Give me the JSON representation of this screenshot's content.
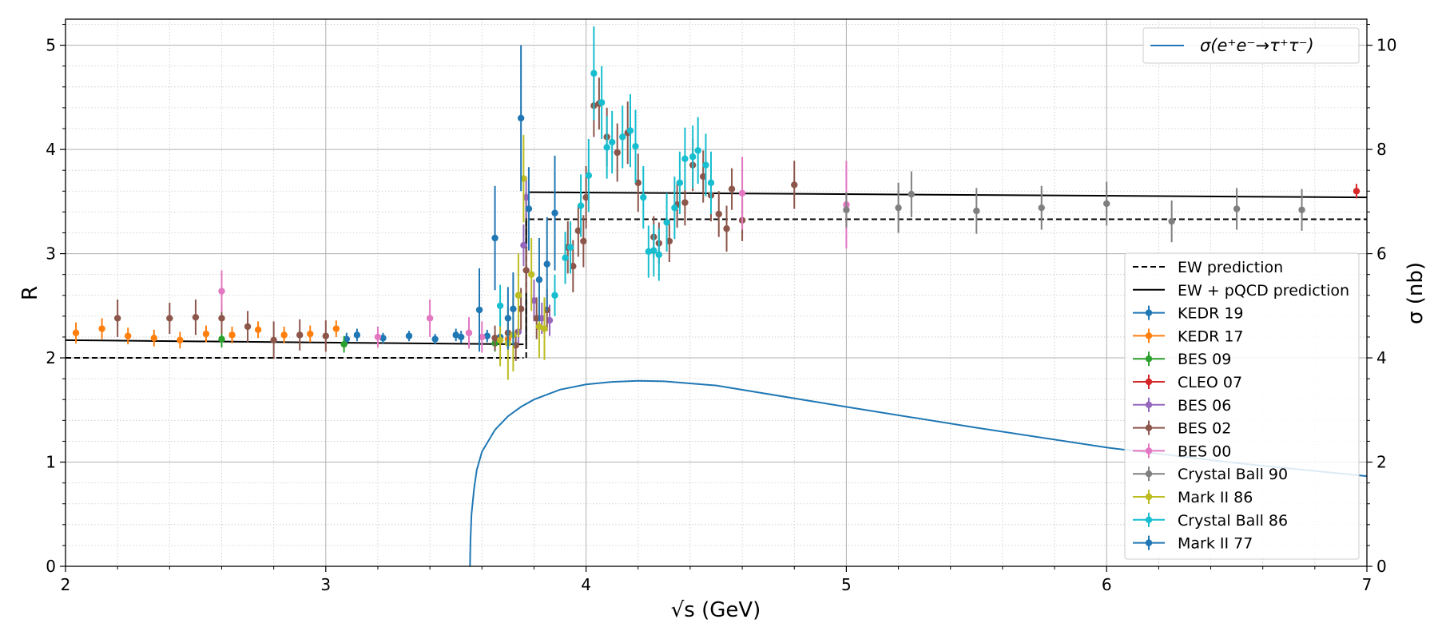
{
  "chart_data": {
    "type": "scatter",
    "title": "",
    "xlabel": "√s (GeV)",
    "ylabel": "R",
    "y2label": "σ (nb)",
    "xlim": [
      2,
      7
    ],
    "ylim": [
      0,
      5.25
    ],
    "y2lim": [
      0,
      10.5
    ],
    "x_ticks": [
      "2",
      "3",
      "4",
      "5",
      "6",
      "7"
    ],
    "y_ticks": [
      "0",
      "1",
      "2",
      "3",
      "4",
      "5"
    ],
    "y2_ticks": [
      "0",
      "2",
      "4",
      "6",
      "8",
      "10"
    ],
    "grid": true,
    "minor_grid": true,
    "legend_top": {
      "placement": "top-right",
      "label": "σ(e⁺e⁻→τ⁺τ⁻)"
    },
    "legend_main": {
      "placement": "right",
      "entries": [
        {
          "label": "EW prediction",
          "style": "dashed"
        },
        {
          "label": "EW + pQCD prediction",
          "style": "solid"
        }
      ]
    },
    "lines": [
      {
        "name": "EW prediction",
        "color": "#000000",
        "style": "dashed",
        "segments": [
          [
            [
              2.0,
              2.0
            ],
            [
              3.76,
              2.0
            ]
          ],
          [
            [
              3.78,
              3.33
            ],
            [
              7.0,
              3.33
            ]
          ]
        ],
        "vertical": [
          3.77,
          2.0,
          3.33
        ]
      },
      {
        "name": "EW + pQCD prediction",
        "color": "#000000",
        "style": "solid",
        "segments": [
          [
            [
              2.0,
              2.17
            ],
            [
              3.76,
              2.13
            ]
          ],
          [
            [
              3.78,
              3.59
            ],
            [
              7.0,
              3.54
            ]
          ]
        ],
        "vertical": [
          3.77,
          2.13,
          3.59
        ]
      },
      {
        "name": "σ(e⁺e⁻→τ⁺τ⁻)",
        "color": "#1f77b4",
        "style": "solid",
        "axis": "y2",
        "points": [
          [
            3.554,
            0.0
          ],
          [
            3.556,
            0.5
          ],
          [
            3.56,
            1.0
          ],
          [
            3.57,
            1.5
          ],
          [
            3.58,
            1.85
          ],
          [
            3.6,
            2.2
          ],
          [
            3.65,
            2.62
          ],
          [
            3.7,
            2.88
          ],
          [
            3.75,
            3.06
          ],
          [
            3.8,
            3.2
          ],
          [
            3.9,
            3.39
          ],
          [
            4.0,
            3.49
          ],
          [
            4.1,
            3.54
          ],
          [
            4.2,
            3.56
          ],
          [
            4.3,
            3.55
          ],
          [
            4.5,
            3.47
          ],
          [
            5.0,
            3.06
          ],
          [
            5.5,
            2.66
          ],
          [
            6.0,
            2.28
          ],
          [
            6.5,
            1.98
          ],
          [
            7.0,
            1.73
          ]
        ]
      }
    ],
    "series": [
      {
        "name": "KEDR 19",
        "color": "#1f77b4",
        "points": [
          [
            3.08,
            2.18,
            0.06
          ],
          [
            3.12,
            2.22,
            0.06
          ],
          [
            3.22,
            2.19,
            0.05
          ],
          [
            3.32,
            2.21,
            0.05
          ],
          [
            3.42,
            2.18,
            0.05
          ],
          [
            3.5,
            2.22,
            0.06
          ],
          [
            3.52,
            2.2,
            0.06
          ],
          [
            3.62,
            2.21,
            0.06
          ],
          [
            3.67,
            2.2,
            0.08
          ]
        ]
      },
      {
        "name": "KEDR 17",
        "color": "#ff7f0e",
        "points": [
          [
            2.04,
            2.24,
            0.1
          ],
          [
            2.14,
            2.28,
            0.1
          ],
          [
            2.24,
            2.21,
            0.08
          ],
          [
            2.34,
            2.19,
            0.08
          ],
          [
            2.44,
            2.17,
            0.08
          ],
          [
            2.54,
            2.23,
            0.08
          ],
          [
            2.64,
            2.22,
            0.08
          ],
          [
            2.74,
            2.27,
            0.08
          ],
          [
            2.84,
            2.22,
            0.08
          ],
          [
            2.94,
            2.23,
            0.08
          ],
          [
            3.04,
            2.28,
            0.08
          ],
          [
            3.7,
            2.18,
            0.1
          ]
        ]
      },
      {
        "name": "BES 09",
        "color": "#2ca02c",
        "points": [
          [
            2.6,
            2.18,
            0.08
          ],
          [
            3.07,
            2.13,
            0.08
          ],
          [
            3.65,
            2.14,
            0.08
          ]
        ]
      },
      {
        "name": "CLEO 07",
        "color": "#d62728",
        "points": [
          [
            6.96,
            3.6,
            0.07
          ]
        ]
      },
      {
        "name": "BES 06",
        "color": "#9467bd",
        "points": [
          [
            3.74,
            2.25,
            0.12
          ],
          [
            3.76,
            3.08,
            0.2
          ],
          [
            3.77,
            3.54,
            0.2
          ],
          [
            3.8,
            2.55,
            0.2
          ],
          [
            3.83,
            2.38,
            0.15
          ],
          [
            3.86,
            2.36,
            0.15
          ]
        ]
      },
      {
        "name": "BES 02",
        "color": "#8c564b",
        "points": [
          [
            2.2,
            2.38,
            0.18
          ],
          [
            2.4,
            2.38,
            0.15
          ],
          [
            2.5,
            2.39,
            0.17
          ],
          [
            2.6,
            2.38,
            0.15
          ],
          [
            2.7,
            2.3,
            0.15
          ],
          [
            2.8,
            2.17,
            0.18
          ],
          [
            2.9,
            2.22,
            0.15
          ],
          [
            3.0,
            2.21,
            0.15
          ],
          [
            3.65,
            2.19,
            0.12
          ],
          [
            3.7,
            2.24,
            0.15
          ],
          [
            3.73,
            2.12,
            0.15
          ],
          [
            3.75,
            2.47,
            0.2
          ],
          [
            3.77,
            2.84,
            0.22
          ],
          [
            3.81,
            2.38,
            0.2
          ],
          [
            3.85,
            2.46,
            0.2
          ],
          [
            3.93,
            3.06,
            0.25
          ],
          [
            3.95,
            2.88,
            0.25
          ],
          [
            3.97,
            3.22,
            0.25
          ],
          [
            3.99,
            3.12,
            0.25
          ],
          [
            4.0,
            3.54,
            0.3
          ],
          [
            4.03,
            4.42,
            0.3
          ],
          [
            4.05,
            4.44,
            0.25
          ],
          [
            4.08,
            4.12,
            0.28
          ],
          [
            4.12,
            3.97,
            0.28
          ],
          [
            4.16,
            4.16,
            0.3
          ],
          [
            4.2,
            3.68,
            0.28
          ],
          [
            4.26,
            3.16,
            0.2
          ],
          [
            4.28,
            3.1,
            0.2
          ],
          [
            4.32,
            3.12,
            0.2
          ],
          [
            4.35,
            3.47,
            0.22
          ],
          [
            4.38,
            3.49,
            0.22
          ],
          [
            4.41,
            3.85,
            0.25
          ],
          [
            4.45,
            3.74,
            0.25
          ],
          [
            4.48,
            3.56,
            0.25
          ],
          [
            4.51,
            3.38,
            0.22
          ],
          [
            4.54,
            3.24,
            0.22
          ],
          [
            4.56,
            3.62,
            0.2
          ],
          [
            4.6,
            3.32,
            0.2
          ],
          [
            4.8,
            3.66,
            0.23
          ]
        ]
      },
      {
        "name": "BES 00",
        "color": "#e377c2",
        "points": [
          [
            2.6,
            2.64,
            0.2
          ],
          [
            3.2,
            2.2,
            0.1
          ],
          [
            3.4,
            2.38,
            0.18
          ],
          [
            3.55,
            2.24,
            0.15
          ],
          [
            3.6,
            2.2,
            0.15
          ],
          [
            4.6,
            3.58,
            0.35
          ],
          [
            5.0,
            3.47,
            0.42
          ]
        ]
      },
      {
        "name": "Crystal Ball 90",
        "color": "#7f7f7f",
        "points": [
          [
            5.0,
            3.42,
            0.17
          ],
          [
            5.2,
            3.44,
            0.24
          ],
          [
            5.25,
            3.57,
            0.22
          ],
          [
            5.5,
            3.41,
            0.22
          ],
          [
            5.75,
            3.44,
            0.21
          ],
          [
            6.0,
            3.48,
            0.21
          ],
          [
            6.25,
            3.31,
            0.2
          ],
          [
            6.5,
            3.43,
            0.2
          ],
          [
            6.75,
            3.42,
            0.2
          ]
        ]
      },
      {
        "name": "Mark II 86",
        "color": "#bcbd22",
        "points": [
          [
            3.67,
            2.17,
            0.25
          ],
          [
            3.7,
            2.14,
            0.35
          ],
          [
            3.72,
            2.22,
            0.35
          ],
          [
            3.74,
            2.6,
            0.4
          ],
          [
            3.76,
            3.72,
            0.42
          ],
          [
            3.79,
            2.8,
            0.35
          ],
          [
            3.82,
            2.3,
            0.3
          ],
          [
            3.84,
            2.28,
            0.3
          ]
        ]
      },
      {
        "name": "Crystal Ball 86",
        "color": "#17becf",
        "points": [
          [
            3.67,
            2.5,
            0.2
          ],
          [
            3.88,
            2.6,
            0.2
          ],
          [
            3.92,
            2.96,
            0.25
          ],
          [
            3.94,
            3.06,
            0.25
          ],
          [
            3.98,
            3.46,
            0.3
          ],
          [
            4.01,
            3.75,
            0.35
          ],
          [
            4.03,
            4.73,
            0.45
          ],
          [
            4.06,
            4.45,
            0.35
          ],
          [
            4.08,
            4.02,
            0.3
          ],
          [
            4.1,
            4.07,
            0.3
          ],
          [
            4.14,
            4.12,
            0.3
          ],
          [
            4.17,
            4.18,
            0.35
          ],
          [
            4.19,
            4.03,
            0.35
          ],
          [
            4.22,
            3.54,
            0.3
          ],
          [
            4.24,
            3.02,
            0.25
          ],
          [
            4.26,
            3.03,
            0.25
          ],
          [
            4.28,
            2.99,
            0.25
          ],
          [
            4.31,
            3.3,
            0.28
          ],
          [
            4.34,
            3.44,
            0.3
          ],
          [
            4.36,
            3.68,
            0.3
          ],
          [
            4.38,
            3.91,
            0.3
          ],
          [
            4.41,
            3.93,
            0.3
          ],
          [
            4.43,
            3.99,
            0.32
          ],
          [
            4.46,
            3.85,
            0.3
          ],
          [
            4.48,
            3.68,
            0.3
          ]
        ]
      },
      {
        "name": "Mark II 77",
        "color": "#1f77b4",
        "points": [
          [
            3.59,
            2.46,
            0.4
          ],
          [
            3.65,
            3.15,
            0.5
          ],
          [
            3.7,
            2.38,
            0.3
          ],
          [
            3.72,
            2.47,
            0.35
          ],
          [
            3.75,
            4.3,
            0.7
          ],
          [
            3.78,
            3.43,
            0.4
          ],
          [
            3.82,
            2.75,
            0.4
          ],
          [
            3.85,
            2.9,
            0.45
          ],
          [
            3.88,
            3.39,
            0.55
          ]
        ]
      }
    ]
  }
}
